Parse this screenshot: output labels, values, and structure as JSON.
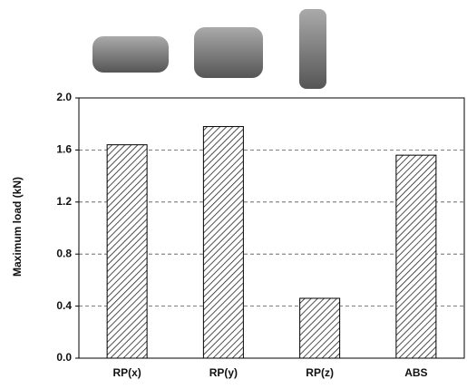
{
  "chart_data": {
    "type": "bar",
    "y_label": "Maximum load (kN)",
    "categories": [
      "RP(x)",
      "RP(y)",
      "RP(z)",
      "ABS"
    ],
    "values": [
      1.64,
      1.78,
      0.46,
      1.56
    ],
    "color": "#000000",
    "ylim": [
      0,
      2.0
    ],
    "yticks": [
      {
        "value": 0,
        "label": "0.0"
      },
      0.4,
      0.8,
      1.2,
      1.6,
      {
        "value": 2.0,
        "label": "2.0"
      }
    ],
    "grid": true
  }
}
